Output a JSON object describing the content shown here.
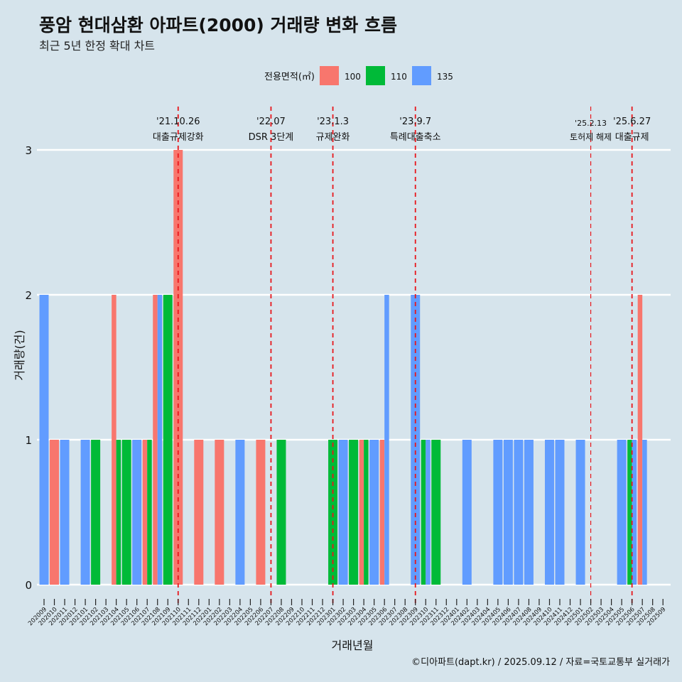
{
  "chart_data": {
    "type": "bar",
    "title": "풍암 현대삼환 아파트(2000) 거래량 변화 흐름",
    "subtitle": "최근 5년 한정 확대 차트",
    "xlabel": "거래년월",
    "ylabel": "거래량(건)",
    "ylim": [
      0,
      3
    ],
    "yticks": [
      0,
      1,
      2,
      3
    ],
    "grid": true,
    "legend": {
      "title": "전용면적(㎡)",
      "position": "top"
    },
    "caption": "©디아파트(dapt.kr) / 2025.09.12 / 자료=국토교통부 실거래가",
    "categories": [
      "202009",
      "202010",
      "202011",
      "202012",
      "202101",
      "202102",
      "202103",
      "202104",
      "202105",
      "202106",
      "202107",
      "202108",
      "202109",
      "202110",
      "202111",
      "202112",
      "202201",
      "202202",
      "202203",
      "202204",
      "202205",
      "202206",
      "202207",
      "202208",
      "202209",
      "202210",
      "202211",
      "202212",
      "202301",
      "202302",
      "202303",
      "202304",
      "202305",
      "202306",
      "202307",
      "202308",
      "202309",
      "202310",
      "202311",
      "202312",
      "202401",
      "202402",
      "202403",
      "202404",
      "202405",
      "202406",
      "202407",
      "202408",
      "202409",
      "202410",
      "202411",
      "202412",
      "202501",
      "202502",
      "202503",
      "202504",
      "202505",
      "202506",
      "202507",
      "202508",
      "202509"
    ],
    "series": [
      {
        "name": "100",
        "color": "#f8766d",
        "values": [
          0,
          1,
          0,
          0,
          0,
          0,
          0,
          2,
          0,
          0,
          1,
          2,
          0,
          3,
          0,
          1,
          0,
          1,
          0,
          0,
          0,
          1,
          0,
          0,
          0,
          0,
          0,
          0,
          0,
          0,
          0,
          1,
          0,
          1,
          0,
          0,
          0,
          0,
          0,
          0,
          0,
          0,
          0,
          0,
          0,
          0,
          0,
          0,
          0,
          0,
          0,
          0,
          0,
          0,
          0,
          0,
          0,
          0,
          2,
          0,
          0
        ]
      },
      {
        "name": "110",
        "color": "#00ba38",
        "values": [
          0,
          0,
          0,
          0,
          0,
          1,
          0,
          1,
          1,
          0,
          1,
          0,
          2,
          0,
          0,
          0,
          0,
          0,
          0,
          0,
          0,
          0,
          0,
          1,
          0,
          0,
          0,
          0,
          1,
          0,
          1,
          1,
          0,
          0,
          0,
          0,
          0,
          1,
          1,
          0,
          0,
          0,
          0,
          0,
          0,
          0,
          0,
          0,
          0,
          0,
          0,
          0,
          0,
          0,
          0,
          0,
          0,
          1,
          0,
          0,
          0
        ]
      },
      {
        "name": "135",
        "color": "#619cff",
        "values": [
          2,
          0,
          1,
          0,
          1,
          0,
          0,
          0,
          0,
          1,
          0,
          2,
          0,
          0,
          0,
          0,
          0,
          0,
          0,
          1,
          0,
          0,
          0,
          0,
          0,
          0,
          0,
          0,
          0,
          1,
          0,
          0,
          1,
          2,
          0,
          0,
          2,
          1,
          0,
          0,
          0,
          1,
          0,
          0,
          1,
          1,
          1,
          1,
          0,
          1,
          1,
          0,
          1,
          0,
          0,
          0,
          1,
          1,
          1,
          0,
          0
        ]
      }
    ],
    "events": [
      {
        "date": "'21.10.26",
        "label": "대출규제강화",
        "x": "202110"
      },
      {
        "date": "'22.07",
        "label": "DSR 3단계",
        "x": "202207"
      },
      {
        "date": "'23.1.3",
        "label": "규제완화",
        "x": "202301"
      },
      {
        "date": "'23.9.7",
        "label": "특례대출축소",
        "x": "202309"
      },
      {
        "date": "'25.2.13",
        "label": "토허제 해제",
        "x": "202502",
        "small": true
      },
      {
        "date": "'25.6.27",
        "label": "대출규제",
        "x": "202506"
      }
    ]
  }
}
